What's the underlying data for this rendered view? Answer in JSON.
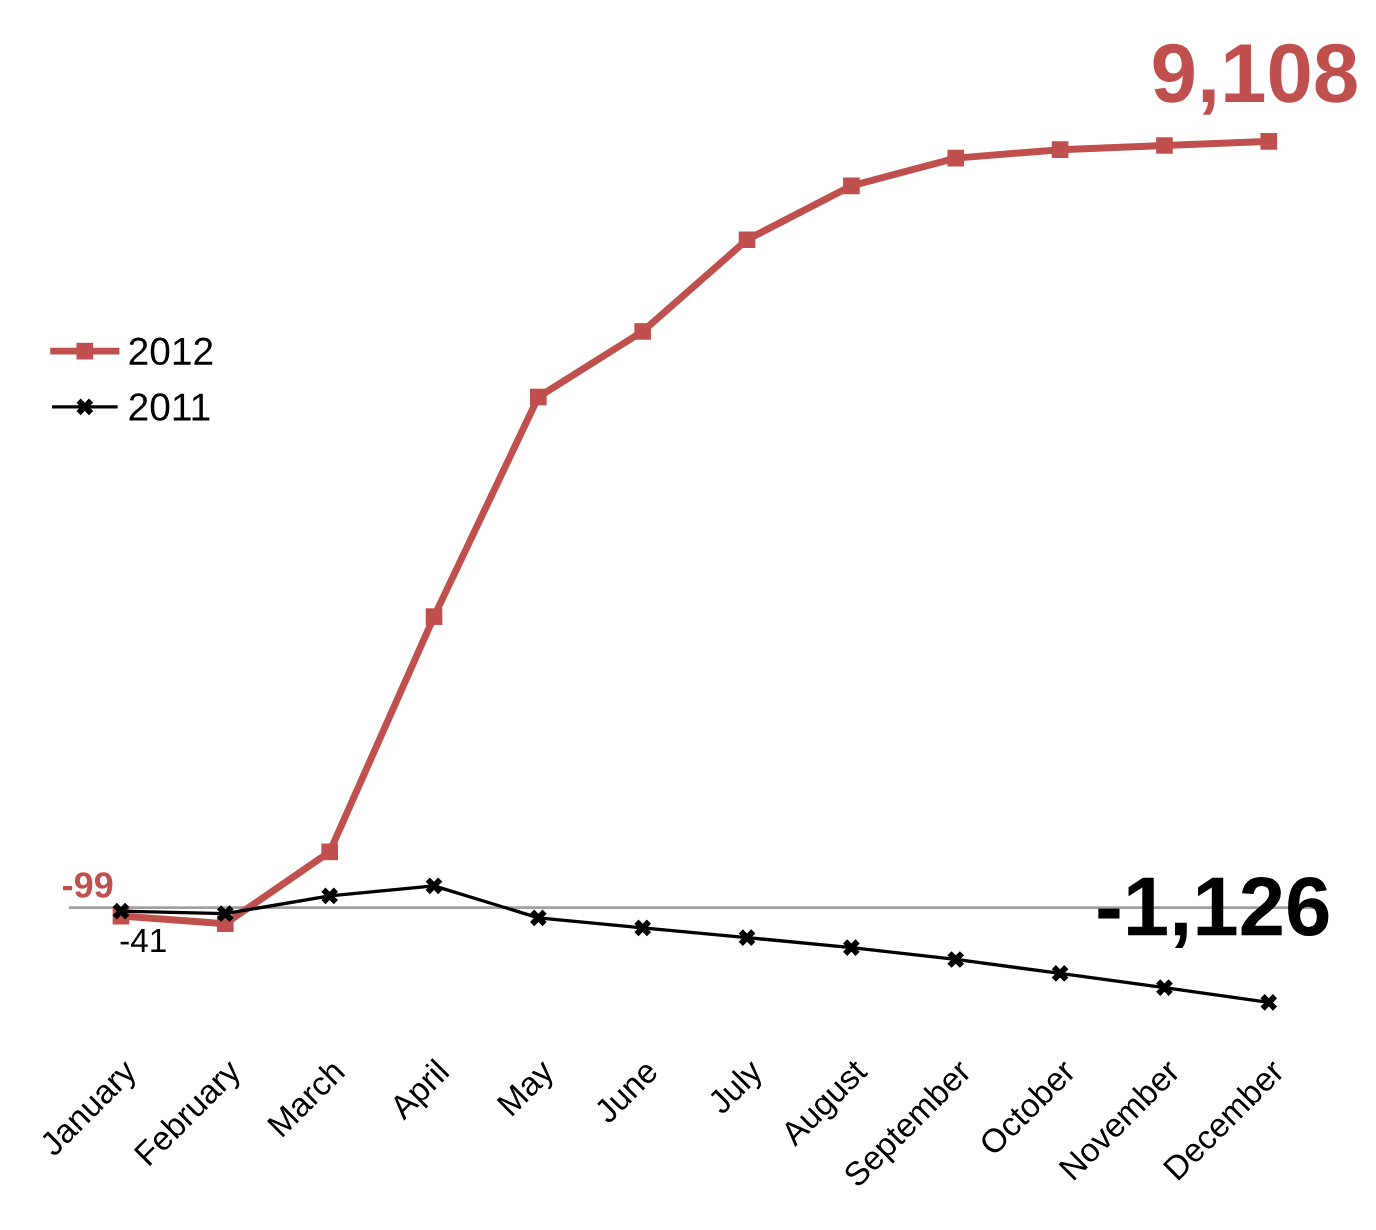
{
  "chart_data": {
    "type": "line",
    "categories": [
      "January",
      "February",
      "March",
      "April",
      "May",
      "June",
      "July",
      "August",
      "September",
      "October",
      "November",
      "December"
    ],
    "series": [
      {
        "name": "2012",
        "color": "#c0504d",
        "marker": "square",
        "values": [
          -99,
          -190,
          664,
          3460,
          6070,
          6850,
          7940,
          8580,
          8910,
          9010,
          9060,
          9108
        ],
        "value_labels": [
          "-99",
          null,
          null,
          null,
          null,
          null,
          null,
          null,
          null,
          null,
          null,
          "9,108"
        ]
      },
      {
        "name": "2011",
        "color": "#000000",
        "marker": "cross",
        "values": [
          -41,
          -70,
          140,
          260,
          -120,
          -240,
          -355,
          -475,
          -615,
          -780,
          -950,
          -1126
        ],
        "value_labels": [
          "-41",
          null,
          null,
          null,
          null,
          null,
          null,
          null,
          null,
          null,
          null,
          "-1,126"
        ]
      }
    ],
    "legend": "left",
    "grid": false
  }
}
